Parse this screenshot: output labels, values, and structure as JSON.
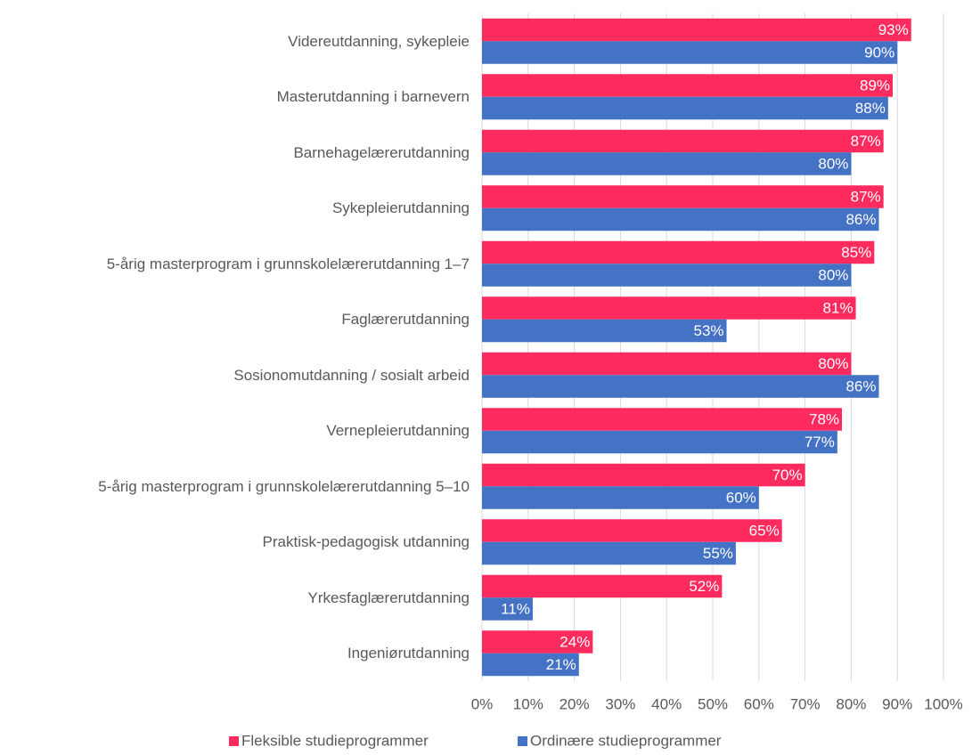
{
  "chart_data": {
    "type": "bar",
    "orientation": "horizontal",
    "categories": [
      "Videreutdanning, sykepleie",
      "Masterutdanning i barnevern",
      "Barnehagelærerutdanning",
      "Sykepleierutdanning",
      "5-årig masterprogram i grunnskolelærerutdanning 1–7",
      "Faglærerutdanning",
      "Sosionomutdanning / sosialt arbeid",
      "Vernepleierutdanning",
      "5-årig masterprogram i grunnskolelærerutdanning 5–10",
      "Praktisk-pedagogisk utdanning",
      "Yrkesfaglærerutdanning",
      "Ingeniørutdanning"
    ],
    "series": [
      {
        "name": "Fleksible studieprogrammer",
        "color": "#ff2a5e",
        "values": [
          93,
          89,
          87,
          87,
          85,
          81,
          80,
          78,
          70,
          65,
          52,
          24
        ],
        "value_labels": [
          "93%",
          "89%",
          "87%",
          "87%",
          "85%",
          "81%",
          "80%",
          "78%",
          "70%",
          "65%",
          "52%",
          "24%"
        ]
      },
      {
        "name": "Ordinære studieprogrammer",
        "color": "#4472c4",
        "values": [
          90,
          88,
          80,
          86,
          80,
          53,
          86,
          77,
          60,
          55,
          11,
          21
        ],
        "value_labels": [
          "90%",
          "88%",
          "80%",
          "86%",
          "80%",
          "53%",
          "86%",
          "77%",
          "60%",
          "55%",
          "11%",
          "21%"
        ]
      }
    ],
    "xlim": [
      0,
      100
    ],
    "xticks": [
      {
        "value": 0,
        "label": "0%"
      },
      {
        "value": 10,
        "label": "10%"
      },
      {
        "value": 20,
        "label": "20%"
      },
      {
        "value": 30,
        "label": "30%"
      },
      {
        "value": 40,
        "label": "40%"
      },
      {
        "value": 50,
        "label": "50%"
      },
      {
        "value": 60,
        "label": "60%"
      },
      {
        "value": 70,
        "label": "70%"
      },
      {
        "value": 80,
        "label": "80%"
      },
      {
        "value": 90,
        "label": "90%"
      },
      {
        "value": 100,
        "label": "100%"
      }
    ],
    "grid": true,
    "legend": "bottom"
  }
}
